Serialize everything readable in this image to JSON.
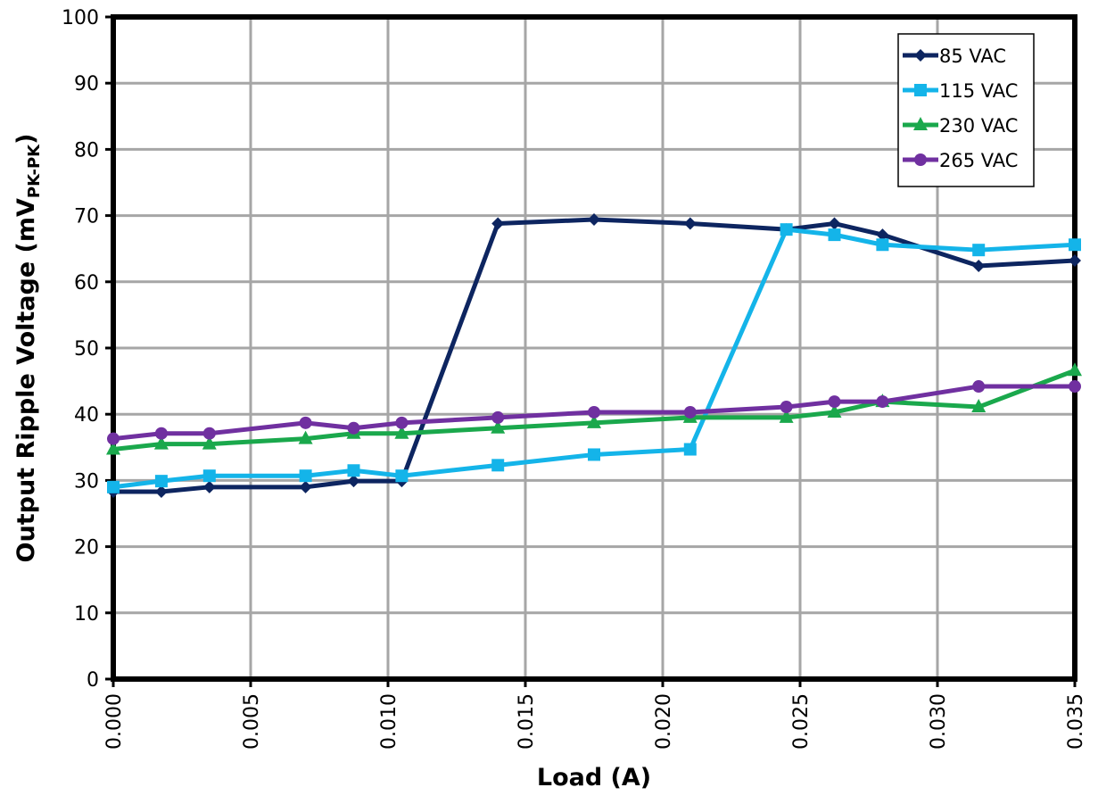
{
  "chart_data": {
    "type": "line",
    "title": "",
    "xlabel": "Load (A)",
    "ylabel": "Output Ripple Voltage (mV",
    "ylabel_subscript": "PK-PK",
    "ylabel_suffix": ")",
    "xlim": [
      0,
      0.035
    ],
    "ylim": [
      0,
      100
    ],
    "x_ticks": [
      "0.000",
      "0.005",
      "0.010",
      "0.015",
      "0.020",
      "0.025",
      "0.030",
      "0.035"
    ],
    "x_tick_values": [
      0,
      0.005,
      0.01,
      0.015,
      0.02,
      0.025,
      0.03,
      0.035
    ],
    "y_ticks": [
      "0",
      "10",
      "20",
      "30",
      "40",
      "50",
      "60",
      "70",
      "80",
      "90",
      "100"
    ],
    "y_tick_values": [
      0,
      10,
      20,
      30,
      40,
      50,
      60,
      70,
      80,
      90,
      100
    ],
    "grid": true,
    "legend_position": "top-right",
    "series": [
      {
        "name": "85 VAC",
        "color": "#0d2560",
        "marker": "diamond",
        "x": [
          0,
          0.00175,
          0.0035,
          0.007,
          0.00875,
          0.0105,
          0.014,
          0.0175,
          0.021,
          0.0245,
          0.02625,
          0.028,
          0.0315,
          0.035
        ],
        "y": [
          28.3,
          28.3,
          29.0,
          29.0,
          29.9,
          29.9,
          68.8,
          69.4,
          68.8,
          67.9,
          68.8,
          67.1,
          62.4,
          63.2
        ]
      },
      {
        "name": "115 VAC",
        "color": "#14b4e9",
        "marker": "square",
        "x": [
          0,
          0.00175,
          0.0035,
          0.007,
          0.00875,
          0.0105,
          0.014,
          0.0175,
          0.021,
          0.0245,
          0.02625,
          0.028,
          0.0315,
          0.035
        ],
        "y": [
          29.0,
          29.9,
          30.7,
          30.7,
          31.5,
          30.7,
          32.3,
          33.9,
          34.7,
          67.9,
          67.1,
          65.6,
          64.8,
          65.6
        ]
      },
      {
        "name": "230 VAC",
        "color": "#1aa84c",
        "marker": "triangle",
        "x": [
          0,
          0.00175,
          0.0035,
          0.007,
          0.00875,
          0.0105,
          0.014,
          0.0175,
          0.021,
          0.0245,
          0.02625,
          0.028,
          0.0315,
          0.035
        ],
        "y": [
          34.7,
          35.5,
          35.5,
          36.3,
          37.1,
          37.1,
          37.9,
          38.7,
          39.5,
          39.5,
          40.3,
          41.9,
          41.1,
          46.6
        ]
      },
      {
        "name": "265 VAC",
        "color": "#7030a0",
        "marker": "circle",
        "x": [
          0,
          0.00175,
          0.0035,
          0.007,
          0.00875,
          0.0105,
          0.014,
          0.0175,
          0.021,
          0.0245,
          0.02625,
          0.028,
          0.0315,
          0.035
        ],
        "y": [
          36.3,
          37.1,
          37.1,
          38.7,
          37.9,
          38.7,
          39.5,
          40.3,
          40.3,
          41.1,
          41.9,
          41.9,
          44.2,
          44.2
        ]
      }
    ]
  }
}
